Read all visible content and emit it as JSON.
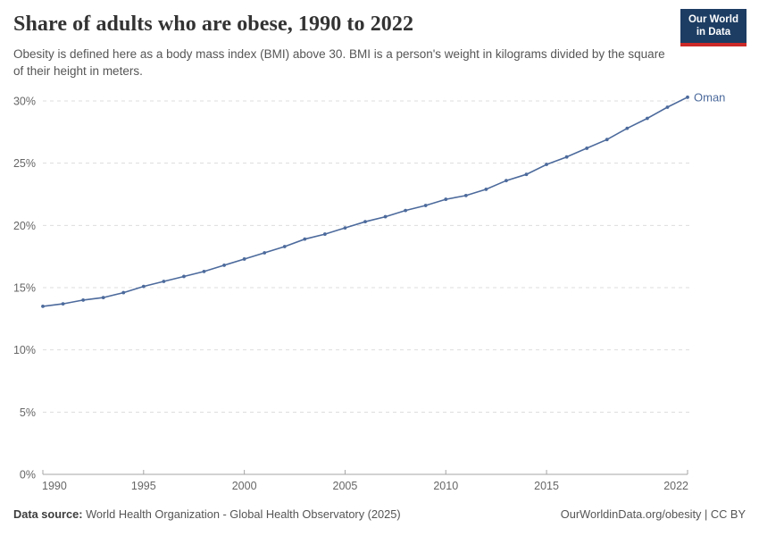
{
  "header": {
    "title": "Share of adults who are obese, 1990 to 2022",
    "subtitle": "Obesity is defined here as a body mass index (BMI) above 30. BMI is a person's weight in kilograms divided by the square of their height in meters.",
    "logo": {
      "line1": "Our World",
      "line2": "in Data"
    }
  },
  "footer": {
    "data_source_label": "Data source:",
    "data_source_value": " World Health Organization - Global Health Observatory (2025)",
    "attribution": "OurWorldinData.org/obesity | CC BY"
  },
  "colors": {
    "line": "#4c6a9c",
    "logo_navy": "#1d3d63",
    "logo_red": "#cc2a28",
    "gridline": "#dddddd",
    "axis_text": "#666666"
  },
  "chart_data": {
    "type": "line",
    "title": "Share of adults who are obese, 1990 to 2022",
    "xlabel": "",
    "ylabel": "",
    "xlim": [
      1990,
      2022
    ],
    "ylim": [
      0,
      30
    ],
    "grid": "horizontal-dashed",
    "legend": "end-of-line-label",
    "xticks": [
      1990,
      1995,
      2000,
      2005,
      2010,
      2015,
      2022
    ],
    "yticks": [
      {
        "value": 0,
        "label": "0%"
      },
      {
        "value": 5,
        "label": "5%"
      },
      {
        "value": 10,
        "label": "10%"
      },
      {
        "value": 15,
        "label": "15%"
      },
      {
        "value": 20,
        "label": "20%"
      },
      {
        "value": 25,
        "label": "25%"
      },
      {
        "value": 30,
        "label": "30%"
      }
    ],
    "x": [
      1990,
      1991,
      1992,
      1993,
      1994,
      1995,
      1996,
      1997,
      1998,
      1999,
      2000,
      2001,
      2002,
      2003,
      2004,
      2005,
      2006,
      2007,
      2008,
      2009,
      2010,
      2011,
      2012,
      2013,
      2014,
      2015,
      2016,
      2017,
      2018,
      2019,
      2020,
      2021,
      2022
    ],
    "series": [
      {
        "name": "Oman",
        "color": "#4c6a9c",
        "values": [
          13.5,
          13.7,
          14.0,
          14.2,
          14.6,
          15.1,
          15.5,
          15.9,
          16.3,
          16.8,
          17.3,
          17.8,
          18.3,
          18.9,
          19.3,
          19.8,
          20.3,
          20.7,
          21.2,
          21.6,
          22.1,
          22.4,
          22.9,
          23.6,
          24.1,
          24.9,
          25.5,
          26.2,
          26.9,
          27.8,
          28.6,
          29.5,
          30.3
        ]
      }
    ]
  }
}
